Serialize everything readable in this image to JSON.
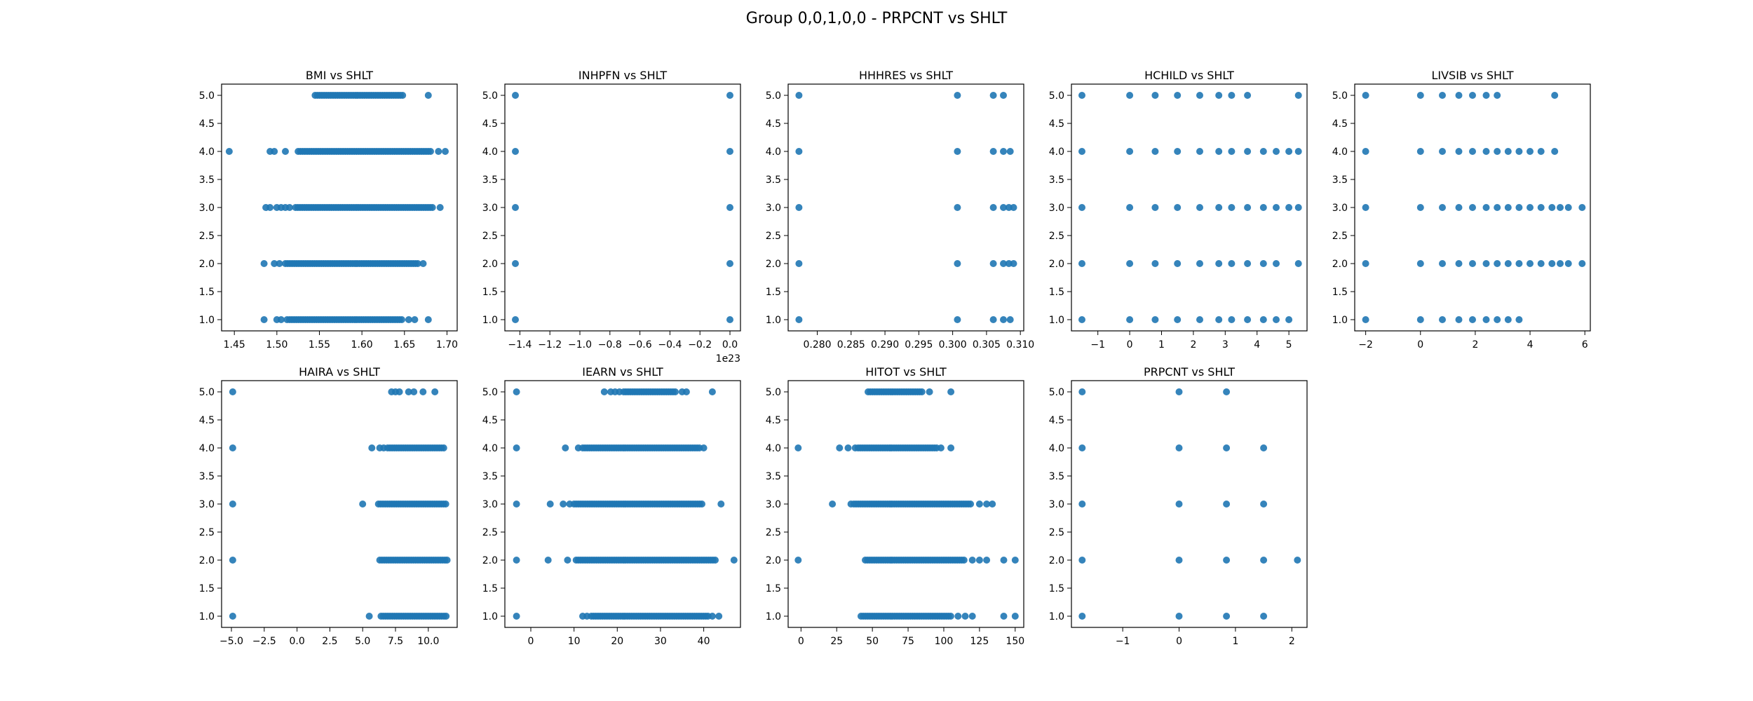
{
  "figure": {
    "title": "Group 0,0,1,0,0 - PRPCNT vs SHLT",
    "marker_color": "#1f77b4"
  },
  "chart_data": [
    {
      "type": "scatter",
      "title": "BMI vs SHLT",
      "xlim": [
        1.435,
        1.712
      ],
      "ylim": [
        0.8,
        5.2
      ],
      "xticks": [
        1.45,
        1.5,
        1.55,
        1.6,
        1.65,
        1.7
      ],
      "xtick_labels": [
        "1.45",
        "1.50",
        "1.55",
        "1.60",
        "1.65",
        "1.70"
      ],
      "yticks": [
        1.0,
        1.5,
        2.0,
        2.5,
        3.0,
        3.5,
        4.0,
        4.5,
        5.0
      ],
      "ytick_labels": [
        "1.0",
        "1.5",
        "2.0",
        "2.5",
        "3.0",
        "3.5",
        "4.0",
        "4.5",
        "5.0"
      ],
      "offset_text": "",
      "rows": [
        {
          "y": 5,
          "points": [
            1.678
          ],
          "range": [
            1.545,
            1.648
          ]
        },
        {
          "y": 4,
          "points": [
            1.444,
            1.492,
            1.497,
            1.51,
            1.69,
            1.698
          ],
          "range": [
            1.525,
            1.682
          ]
        },
        {
          "y": 3,
          "points": [
            1.487,
            1.492,
            1.5,
            1.505,
            1.51,
            1.515,
            1.692
          ],
          "range": [
            1.522,
            1.685
          ]
        },
        {
          "y": 2,
          "points": [
            1.485,
            1.497,
            1.503,
            1.672
          ],
          "range": [
            1.51,
            1.668
          ]
        },
        {
          "y": 1,
          "points": [
            1.485,
            1.5,
            1.505,
            1.512,
            1.655,
            1.662,
            1.678
          ],
          "range": [
            1.515,
            1.648
          ]
        }
      ]
    },
    {
      "type": "scatter",
      "title": "INHPFN vs SHLT",
      "xlim": [
        -1.5,
        0.07
      ],
      "ylim": [
        0.8,
        5.2
      ],
      "xticks": [
        -1.4,
        -1.2,
        -1.0,
        -0.8,
        -0.6,
        -0.4,
        -0.2,
        0.0
      ],
      "xtick_labels": [
        "−1.4",
        "−1.2",
        "−1.0",
        "−0.8",
        "−0.6",
        "−0.4",
        "−0.2",
        "0.0"
      ],
      "yticks": [
        1.0,
        1.5,
        2.0,
        2.5,
        3.0,
        3.5,
        4.0,
        4.5,
        5.0
      ],
      "ytick_labels": [
        "1.0",
        "1.5",
        "2.0",
        "2.5",
        "3.0",
        "3.5",
        "4.0",
        "4.5",
        "5.0"
      ],
      "offset_text": "1e23",
      "rows": [
        {
          "y": 5,
          "points": [
            -1.43,
            0.0
          ],
          "range": null
        },
        {
          "y": 4,
          "points": [
            -1.43,
            0.0
          ],
          "range": null
        },
        {
          "y": 3,
          "points": [
            -1.43,
            0.0
          ],
          "range": null
        },
        {
          "y": 2,
          "points": [
            -1.43,
            0.0
          ],
          "range": null
        },
        {
          "y": 1,
          "points": [
            -1.43,
            0.0
          ],
          "range": null
        }
      ]
    },
    {
      "type": "scatter",
      "title": "HHHRES vs SHLT",
      "xlim": [
        0.2757,
        0.3105
      ],
      "ylim": [
        0.8,
        5.2
      ],
      "xticks": [
        0.28,
        0.285,
        0.29,
        0.295,
        0.3,
        0.305,
        0.31
      ],
      "xtick_labels": [
        "0.280",
        "0.285",
        "0.290",
        "0.295",
        "0.300",
        "0.305",
        "0.310"
      ],
      "yticks": [
        1.0,
        1.5,
        2.0,
        2.5,
        3.0,
        3.5,
        4.0,
        4.5,
        5.0
      ],
      "ytick_labels": [
        "1.0",
        "1.5",
        "2.0",
        "2.5",
        "3.0",
        "3.5",
        "4.0",
        "4.5",
        "5.0"
      ],
      "offset_text": "",
      "rows": [
        {
          "y": 5,
          "points": [
            0.2773,
            0.3007,
            0.306,
            0.3075
          ],
          "range": null
        },
        {
          "y": 4,
          "points": [
            0.2773,
            0.3007,
            0.306,
            0.3075,
            0.3085
          ],
          "range": null
        },
        {
          "y": 3,
          "points": [
            0.2773,
            0.3007,
            0.306,
            0.3075,
            0.3083,
            0.309
          ],
          "range": null
        },
        {
          "y": 2,
          "points": [
            0.2773,
            0.3007,
            0.306,
            0.3075,
            0.3083,
            0.309
          ],
          "range": null
        },
        {
          "y": 1,
          "points": [
            0.2773,
            0.3007,
            0.306,
            0.3075,
            0.3085
          ],
          "range": null
        }
      ]
    },
    {
      "type": "scatter",
      "title": "HCHILD vs SHLT",
      "xlim": [
        -1.83,
        5.57
      ],
      "ylim": [
        0.8,
        5.2
      ],
      "xticks": [
        -1,
        0,
        1,
        2,
        3,
        4,
        5
      ],
      "xtick_labels": [
        "−1",
        "0",
        "1",
        "2",
        "3",
        "4",
        "5"
      ],
      "yticks": [
        1.0,
        1.5,
        2.0,
        2.5,
        3.0,
        3.5,
        4.0,
        4.5,
        5.0
      ],
      "ytick_labels": [
        "1.0",
        "1.5",
        "2.0",
        "2.5",
        "3.0",
        "3.5",
        "4.0",
        "4.5",
        "5.0"
      ],
      "offset_text": "",
      "rows": [
        {
          "y": 5,
          "points": [
            -1.5,
            0.0,
            0.8,
            1.5,
            2.2,
            2.8,
            3.2,
            3.7,
            5.3
          ],
          "range": null
        },
        {
          "y": 4,
          "points": [
            -1.5,
            0.0,
            0.8,
            1.5,
            2.2,
            2.8,
            3.2,
            3.7,
            4.2,
            4.6,
            5.0,
            5.3
          ],
          "range": null
        },
        {
          "y": 3,
          "points": [
            -1.5,
            0.0,
            0.8,
            1.5,
            2.2,
            2.8,
            3.2,
            3.7,
            4.2,
            4.6,
            5.0,
            5.3
          ],
          "range": null
        },
        {
          "y": 2,
          "points": [
            -1.5,
            0.0,
            0.8,
            1.5,
            2.2,
            2.8,
            3.2,
            3.7,
            4.2,
            4.6,
            5.3
          ],
          "range": null
        },
        {
          "y": 1,
          "points": [
            -1.5,
            0.0,
            0.8,
            1.5,
            2.2,
            2.8,
            3.2,
            3.7,
            4.2,
            4.6,
            5.0
          ],
          "range": null
        }
      ]
    },
    {
      "type": "scatter",
      "title": "LIVSIB vs SHLT",
      "xlim": [
        -2.4,
        6.2
      ],
      "ylim": [
        0.8,
        5.2
      ],
      "xticks": [
        -2,
        0,
        2,
        4,
        6
      ],
      "xtick_labels": [
        "−2",
        "0",
        "2",
        "4",
        "6"
      ],
      "yticks": [
        1.0,
        1.5,
        2.0,
        2.5,
        3.0,
        3.5,
        4.0,
        4.5,
        5.0
      ],
      "ytick_labels": [
        "1.0",
        "1.5",
        "2.0",
        "2.5",
        "3.0",
        "3.5",
        "4.0",
        "4.5",
        "5.0"
      ],
      "offset_text": "",
      "rows": [
        {
          "y": 5,
          "points": [
            -2.0,
            0.0,
            0.8,
            1.4,
            1.9,
            2.4,
            2.8,
            4.9
          ],
          "range": null
        },
        {
          "y": 4,
          "points": [
            -2.0,
            0.0,
            0.8,
            1.4,
            1.9,
            2.4,
            2.8,
            3.2,
            3.6,
            4.0,
            4.4,
            4.9
          ],
          "range": null
        },
        {
          "y": 3,
          "points": [
            -2.0,
            0.0,
            0.8,
            1.4,
            1.9,
            2.4,
            2.8,
            3.2,
            3.6,
            4.0,
            4.4,
            4.8,
            5.1,
            5.4,
            5.9
          ],
          "range": null
        },
        {
          "y": 2,
          "points": [
            -2.0,
            0.0,
            0.8,
            1.4,
            1.9,
            2.4,
            2.8,
            3.2,
            3.6,
            4.0,
            4.4,
            4.8,
            5.1,
            5.4,
            5.9
          ],
          "range": null
        },
        {
          "y": 1,
          "points": [
            -2.0,
            0.0,
            0.8,
            1.4,
            1.9,
            2.4,
            2.8,
            3.2,
            3.6
          ],
          "range": null
        }
      ]
    },
    {
      "type": "scatter",
      "title": "HAIRA vs SHLT",
      "xlim": [
        -5.75,
        12.2
      ],
      "ylim": [
        0.8,
        5.2
      ],
      "xticks": [
        -5.0,
        -2.5,
        0.0,
        2.5,
        5.0,
        7.5,
        10.0
      ],
      "xtick_labels": [
        "−5.0",
        "−2.5",
        "0.0",
        "2.5",
        "5.0",
        "7.5",
        "10.0"
      ],
      "yticks": [
        1.0,
        1.5,
        2.0,
        2.5,
        3.0,
        3.5,
        4.0,
        4.5,
        5.0
      ],
      "ytick_labels": [
        "1.0",
        "1.5",
        "2.0",
        "2.5",
        "3.0",
        "3.5",
        "4.0",
        "4.5",
        "5.0"
      ],
      "offset_text": "",
      "rows": [
        {
          "y": 5,
          "points": [
            -4.9,
            7.2,
            7.5,
            7.8,
            8.5,
            8.9,
            9.6,
            10.5
          ],
          "range": null
        },
        {
          "y": 4,
          "points": [
            -4.9,
            5.7,
            6.3,
            6.6
          ],
          "range": [
            6.9,
            11.3
          ]
        },
        {
          "y": 3,
          "points": [
            -4.9,
            5.0
          ],
          "range": [
            6.2,
            11.4
          ]
        },
        {
          "y": 2,
          "points": [
            -4.9
          ],
          "range": [
            6.3,
            11.5
          ]
        },
        {
          "y": 1,
          "points": [
            -4.9,
            5.5
          ],
          "range": [
            6.4,
            11.4
          ]
        }
      ]
    },
    {
      "type": "scatter",
      "title": "IEARN vs SHLT",
      "xlim": [
        -6.0,
        48.5
      ],
      "ylim": [
        0.8,
        5.2
      ],
      "xticks": [
        0,
        10,
        20,
        30,
        40
      ],
      "xtick_labels": [
        "0",
        "10",
        "20",
        "30",
        "40"
      ],
      "yticks": [
        1.0,
        1.5,
        2.0,
        2.5,
        3.0,
        3.5,
        4.0,
        4.5,
        5.0
      ],
      "ytick_labels": [
        "1.0",
        "1.5",
        "2.0",
        "2.5",
        "3.0",
        "3.5",
        "4.0",
        "4.5",
        "5.0"
      ],
      "offset_text": "",
      "rows": [
        {
          "y": 5,
          "points": [
            -3.3,
            17.0,
            18.5,
            19.5,
            20.5,
            21.5,
            35.0,
            36.0,
            42.0
          ],
          "range": [
            22.0,
            33.5
          ]
        },
        {
          "y": 4,
          "points": [
            -3.3,
            8.0,
            11.0,
            40.0
          ],
          "range": [
            12.0,
            39.0
          ]
        },
        {
          "y": 3,
          "points": [
            -3.3,
            4.5,
            7.5,
            9.0,
            44.0
          ],
          "range": [
            10.0,
            40.0
          ]
        },
        {
          "y": 2,
          "points": [
            -3.3,
            4.0,
            8.5,
            10.5,
            47.0
          ],
          "range": [
            11.0,
            43.0
          ]
        },
        {
          "y": 1,
          "points": [
            -3.3,
            12.0,
            13.0,
            42.0,
            43.5
          ],
          "range": [
            14.0,
            41.0
          ]
        }
      ]
    },
    {
      "type": "scatter",
      "title": "HITOT vs SHLT",
      "xlim": [
        -9.0,
        156.0
      ],
      "ylim": [
        0.8,
        5.2
      ],
      "xticks": [
        0,
        25,
        50,
        75,
        100,
        125,
        150
      ],
      "xtick_labels": [
        "0",
        "25",
        "50",
        "75",
        "100",
        "125",
        "150"
      ],
      "yticks": [
        1.0,
        1.5,
        2.0,
        2.5,
        3.0,
        3.5,
        4.0,
        4.5,
        5.0
      ],
      "ytick_labels": [
        "1.0",
        "1.5",
        "2.0",
        "2.5",
        "3.0",
        "3.5",
        "4.0",
        "4.5",
        "5.0"
      ],
      "offset_text": "",
      "rows": [
        {
          "y": 5,
          "points": [
            90.0,
            105.0
          ],
          "range": [
            47.0,
            85.0
          ]
        },
        {
          "y": 4,
          "points": [
            -2.0,
            27.0,
            33.0,
            38.0,
            98.0,
            105.0
          ],
          "range": [
            40.0,
            95.0
          ]
        },
        {
          "y": 3,
          "points": [
            22.0,
            35.0,
            125.0,
            130.0,
            134.0
          ],
          "range": [
            37.0,
            120.0
          ]
        },
        {
          "y": 2,
          "points": [
            -2.0,
            120.0,
            125.0,
            130.0,
            142.0,
            150.0
          ],
          "range": [
            45.0,
            115.0
          ]
        },
        {
          "y": 1,
          "points": [
            110.0,
            115.0,
            120.0,
            142.0,
            150.0
          ],
          "range": [
            42.0,
            105.0
          ]
        }
      ]
    },
    {
      "type": "scatter",
      "title": "PRPCNT vs SHLT",
      "xlim": [
        -1.91,
        2.27
      ],
      "ylim": [
        0.8,
        5.2
      ],
      "xticks": [
        -1,
        0,
        1,
        2
      ],
      "xtick_labels": [
        "−1",
        "0",
        "1",
        "2"
      ],
      "yticks": [
        1.0,
        1.5,
        2.0,
        2.5,
        3.0,
        3.5,
        4.0,
        4.5,
        5.0
      ],
      "ytick_labels": [
        "1.0",
        "1.5",
        "2.0",
        "2.5",
        "3.0",
        "3.5",
        "4.0",
        "4.5",
        "5.0"
      ],
      "offset_text": "",
      "rows": [
        {
          "y": 5,
          "points": [
            -1.72,
            0.0,
            0.84
          ],
          "range": null
        },
        {
          "y": 4,
          "points": [
            -1.72,
            0.0,
            0.84,
            1.5
          ],
          "range": null
        },
        {
          "y": 3,
          "points": [
            -1.72,
            0.0,
            0.84,
            1.5
          ],
          "range": null
        },
        {
          "y": 2,
          "points": [
            -1.72,
            0.0,
            0.84,
            1.5,
            2.1
          ],
          "range": null
        },
        {
          "y": 1,
          "points": [
            -1.72,
            0.0,
            0.84,
            1.5
          ],
          "range": null
        }
      ]
    }
  ]
}
